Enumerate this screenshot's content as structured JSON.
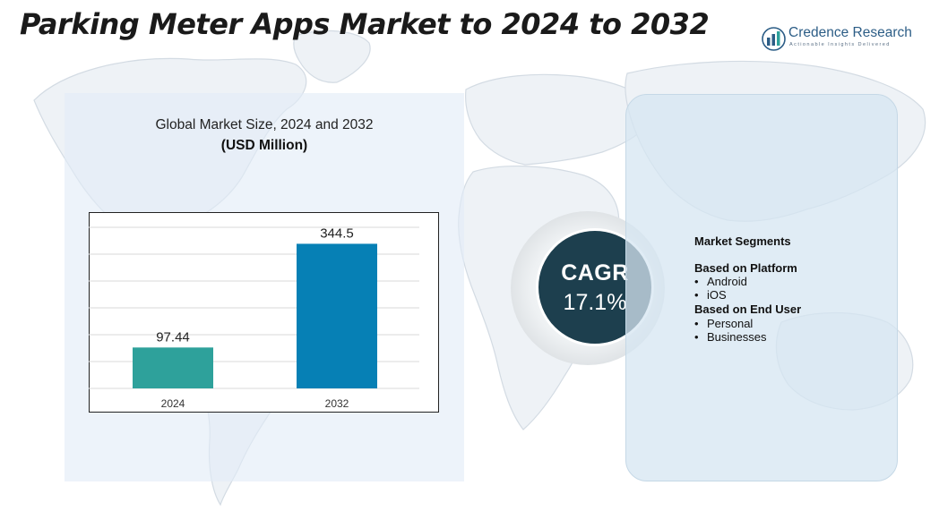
{
  "header": {
    "title": "Parking Meter Apps Market to 2024 to 2032"
  },
  "logo": {
    "name": "Credence Research",
    "tagline": "Actionable Insights Delivered"
  },
  "chart": {
    "title": "Global Market Size, 2024 and 2032",
    "unit": "(USD Million)"
  },
  "chart_data": {
    "type": "bar",
    "title": "Global Market Size, 2024 and 2032",
    "ylabel": "USD Million",
    "categories": [
      "2024",
      "2032"
    ],
    "values": [
      97.44,
      344.5
    ],
    "value_labels": [
      "97.44",
      "344.5"
    ],
    "colors": [
      "#2ea19b",
      "#0680b5"
    ],
    "ylim": [
      0,
      420
    ],
    "grid": true
  },
  "cagr": {
    "label": "CAGR",
    "value": "17.1%"
  },
  "segments": {
    "heading": "Market Segments",
    "groups": [
      {
        "title": "Based on Platform",
        "items": [
          "Android",
          "iOS"
        ]
      },
      {
        "title": "Based on End User",
        "items": [
          "Personal",
          "Businesses"
        ]
      }
    ]
  }
}
